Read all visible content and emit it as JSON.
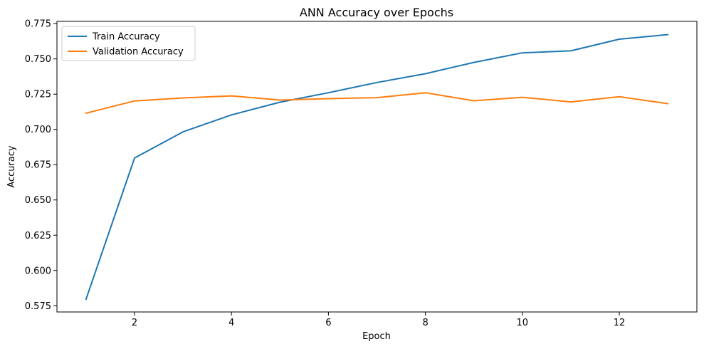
{
  "chart_data": {
    "type": "line",
    "title": "ANN Accuracy over Epochs",
    "xlabel": "Epoch",
    "ylabel": "Accuracy",
    "x": [
      1,
      2,
      3,
      4,
      5,
      6,
      7,
      8,
      9,
      10,
      11,
      12,
      13
    ],
    "xlim": [
      0.4,
      13.6
    ],
    "ylim": [
      0.5706,
      0.7766
    ],
    "x_ticks": [
      2,
      4,
      6,
      8,
      10,
      12
    ],
    "y_ticks": [
      0.575,
      0.6,
      0.625,
      0.65,
      0.675,
      0.7,
      0.725,
      0.75,
      0.775
    ],
    "x_tick_labels": [
      "2",
      "4",
      "6",
      "8",
      "10",
      "12"
    ],
    "y_tick_labels": [
      "0.575",
      "0.600",
      "0.625",
      "0.650",
      "0.675",
      "0.700",
      "0.725",
      "0.750",
      "0.775"
    ],
    "grid": false,
    "legend_position": "top-left",
    "series": [
      {
        "name": "Train Accuracy",
        "color": "#1f77b4",
        "values": [
          0.5797,
          0.6797,
          0.6983,
          0.7103,
          0.7193,
          0.726,
          0.7333,
          0.7395,
          0.7475,
          0.7543,
          0.7557,
          0.764,
          0.7672
        ]
      },
      {
        "name": "Validation Accuracy",
        "color": "#ff7f0e",
        "values": [
          0.7115,
          0.7202,
          0.7223,
          0.7238,
          0.7208,
          0.7218,
          0.7225,
          0.726,
          0.7203,
          0.7228,
          0.7195,
          0.7232,
          0.7183
        ]
      }
    ]
  }
}
